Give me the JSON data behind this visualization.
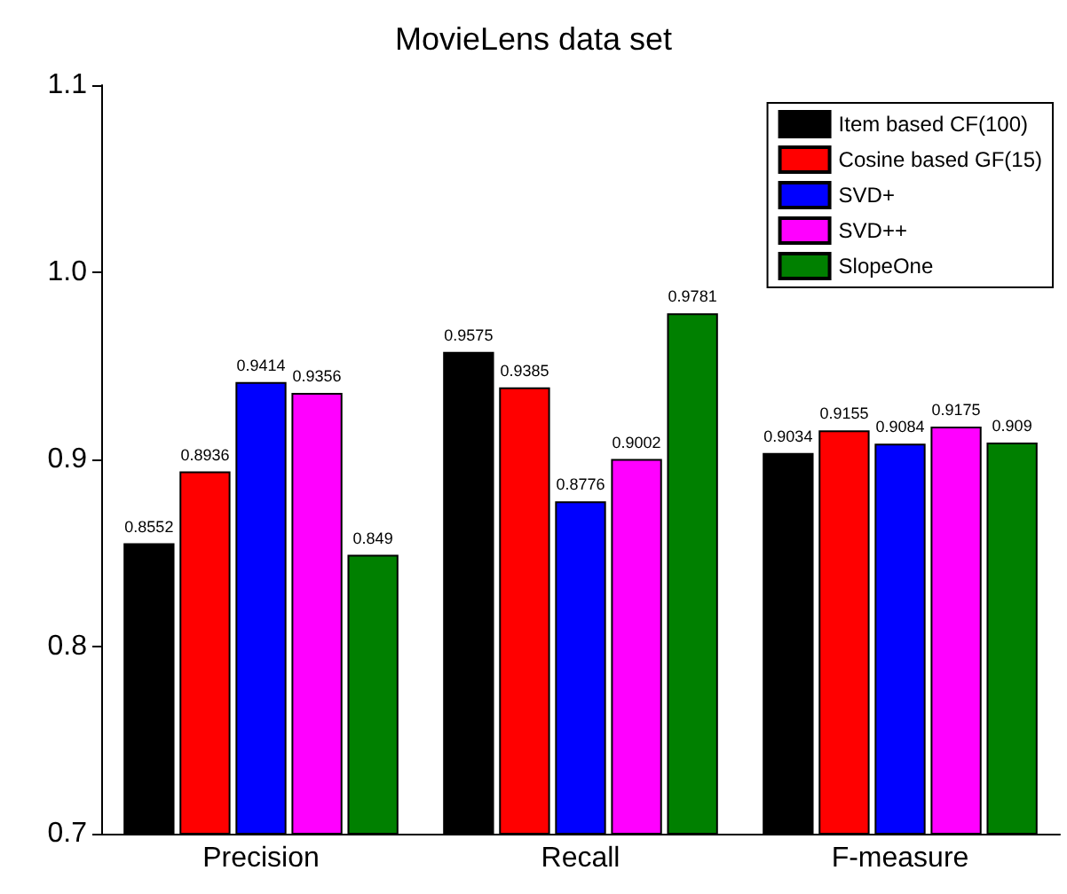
{
  "chart_data": {
    "type": "bar",
    "title": "MovieLens data set",
    "categories": [
      "Precision",
      "Recall",
      "F-measure"
    ],
    "series": [
      {
        "name": "Item based CF(100)",
        "color": "#000000",
        "values": [
          0.8552,
          0.9575,
          0.9034
        ]
      },
      {
        "name": "Cosine based GF(15)",
        "color": "#ff0000",
        "values": [
          0.8936,
          0.9385,
          0.9155
        ]
      },
      {
        "name": "SVD+",
        "color": "#0000ff",
        "values": [
          0.9414,
          0.8776,
          0.9084
        ]
      },
      {
        "name": "SVD++",
        "color": "#ff00ff",
        "values": [
          0.9356,
          0.9002,
          0.9175
        ]
      },
      {
        "name": "SlopeOne",
        "color": "#008000",
        "values": [
          0.849,
          0.9781,
          0.909
        ]
      }
    ],
    "ylim": [
      0.7,
      1.1
    ],
    "yticks": [
      0.7,
      0.8,
      0.9,
      {
        "value": 1,
        "label": "1.0"
      },
      1.1
    ],
    "data_labels": true,
    "legend": "top right",
    "grid": false
  }
}
